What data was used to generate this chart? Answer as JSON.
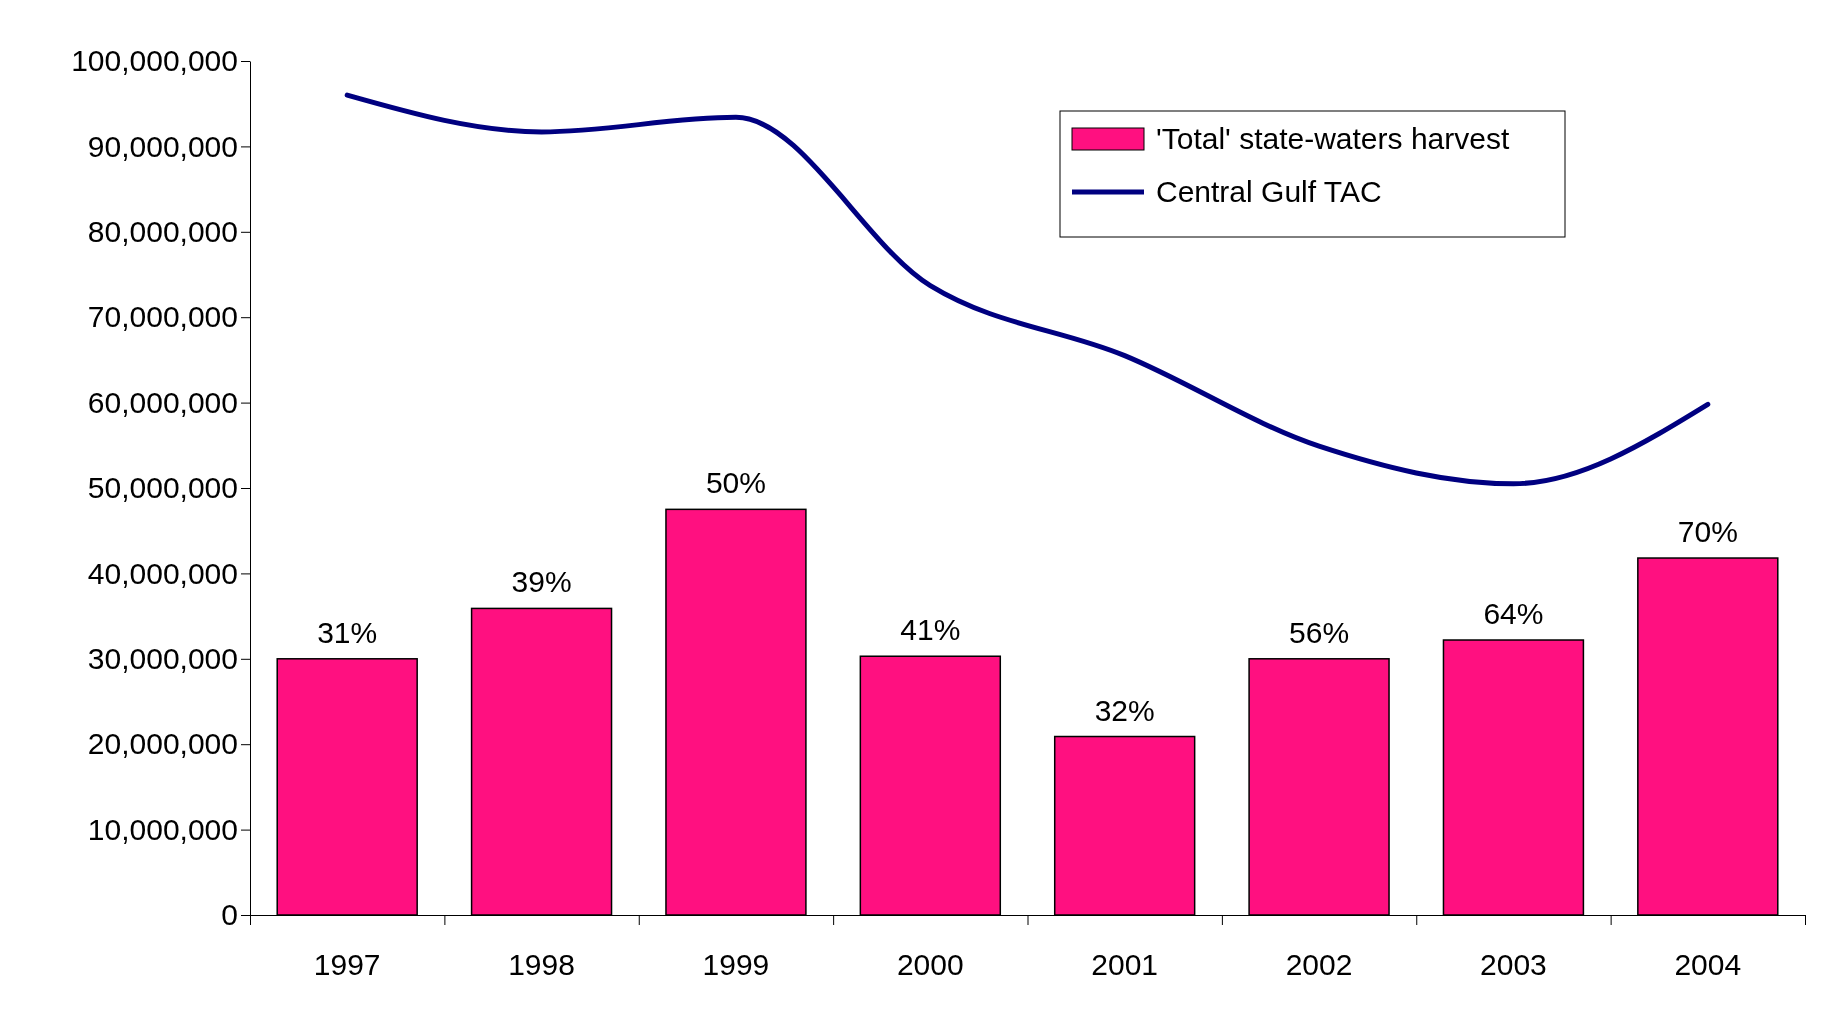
{
  "chart_data": {
    "type": "bar",
    "categories": [
      "1997",
      "1998",
      "1999",
      "2000",
      "2001",
      "2002",
      "2003",
      "2004"
    ],
    "series": [
      {
        "name": "'Total' state-waters harvest",
        "color": "#ff1080",
        "values": [
          30000000,
          35900000,
          47500000,
          30300000,
          20900000,
          30000000,
          32200000,
          41800000
        ]
      },
      {
        "name": "Central Gulf TAC",
        "type": "line",
        "color": "#000080",
        "values": [
          96000000,
          91700000,
          93400000,
          73700000,
          65500000,
          54900000,
          50500000,
          59800000
        ]
      }
    ],
    "ylim": [
      0,
      100000000
    ],
    "yticks": [
      {
        "value": 0,
        "label": "0"
      },
      {
        "value": 10000000,
        "label": "10,000,000"
      },
      {
        "value": 20000000,
        "label": "20,000,000"
      },
      {
        "value": 30000000,
        "label": "30,000,000"
      },
      {
        "value": 40000000,
        "label": "40,000,000"
      },
      {
        "value": 50000000,
        "label": "50,000,000"
      },
      {
        "value": 60000000,
        "label": "60,000,000"
      },
      {
        "value": 70000000,
        "label": "70,000,000"
      },
      {
        "value": 80000000,
        "label": "80,000,000"
      },
      {
        "value": 90000000,
        "label": "90,000,000"
      },
      {
        "value": 100000000,
        "label": "100,000,000"
      }
    ],
    "annotations": [
      {
        "text": "31%",
        "x": "1997",
        "y": 30000000
      },
      {
        "text": "39%",
        "x": "1998",
        "y": 35900000
      },
      {
        "text": "50%",
        "x": "1999",
        "y": 47500000
      },
      {
        "text": "41%",
        "x": "2000",
        "y": 30300000
      },
      {
        "text": "32%",
        "x": "2001",
        "y": 20900000
      },
      {
        "text": "56%",
        "x": "2002",
        "y": 30000000
      },
      {
        "text": "64%",
        "x": "2003",
        "y": 32200000
      },
      {
        "text": "70%",
        "x": "2004",
        "y": 41800000
      }
    ],
    "legend": "top right",
    "line_style": "solid",
    "marker": "none"
  }
}
